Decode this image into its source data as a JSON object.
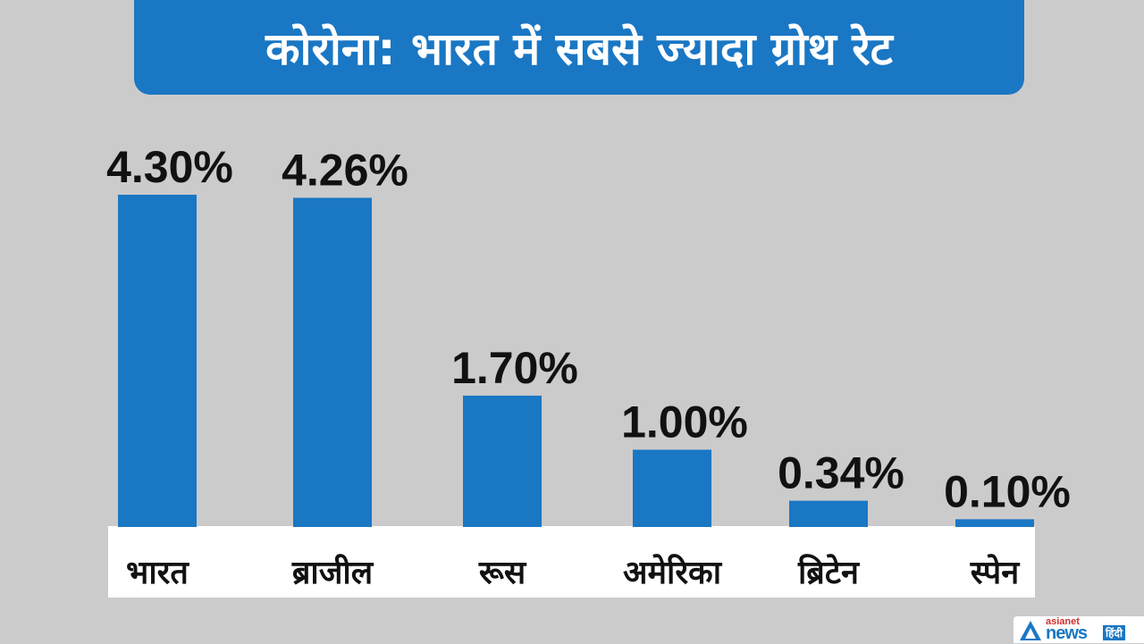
{
  "title": "कोरोना: भारत में सबसे ज्यादा ग्रोथ रेट",
  "colors": {
    "bar": "#1a77c4",
    "title_bg": "#1a77c4",
    "background": "#cbcbcb",
    "label_strip": "#ffffff"
  },
  "logo": {
    "top_text": "asianet",
    "main_text": "news",
    "sub_text": "हिंदी"
  },
  "chart_data": {
    "type": "bar",
    "title": "कोरोना: भारत में सबसे ज्यादा ग्रोथ रेट",
    "categories": [
      "भारत",
      "ब्राजील",
      "रूस",
      "अमेरिका",
      "ब्रिटेन",
      "स्पेन"
    ],
    "values": [
      4.3,
      4.26,
      1.7,
      1.0,
      0.34,
      0.1
    ],
    "value_labels": [
      "4.30%",
      "4.26%",
      "1.70%",
      "1.00%",
      "0.34%",
      "0.10%"
    ],
    "xlabel": "",
    "ylabel": "",
    "grid": false,
    "legend": "none"
  }
}
